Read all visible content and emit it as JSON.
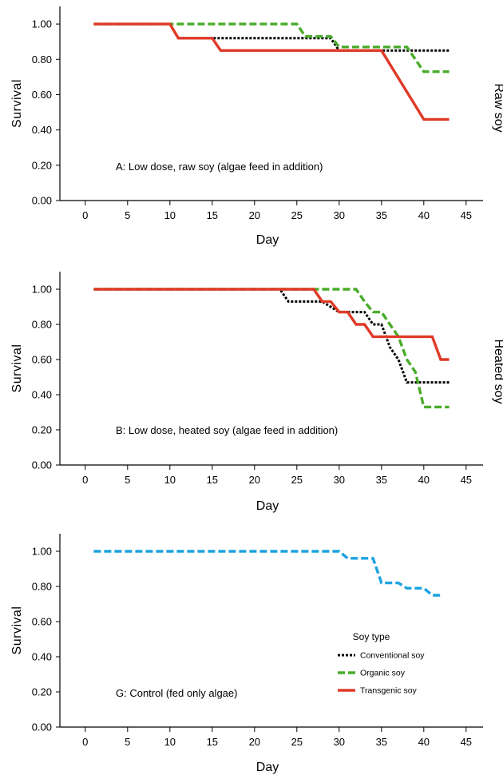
{
  "chart_data": [
    {
      "type": "line",
      "panel_id": "A",
      "annotation": "A: Low dose, raw soy (algae feed in addition)",
      "side_label": "Raw soy",
      "xlabel": "Day",
      "ylabel": "Survival",
      "xlim": [
        -3,
        47
      ],
      "ylim": [
        0,
        1.1
      ],
      "xticks": [
        0,
        5,
        10,
        15,
        20,
        25,
        30,
        35,
        40,
        45
      ],
      "yticks": [
        "0.00",
        "0.20",
        "0.40",
        "0.60",
        "0.80",
        "1.00"
      ],
      "grid": false,
      "series": [
        {
          "name": "Conventional soy",
          "color": "#000000",
          "style": "dotted",
          "points": [
            [
              1,
              1.0
            ],
            [
              10,
              1.0
            ],
            [
              11,
              0.92
            ],
            [
              29,
              0.92
            ],
            [
              30,
              0.85
            ],
            [
              43,
              0.85
            ]
          ]
        },
        {
          "name": "Organic soy",
          "color": "#4aac2a",
          "style": "dashed",
          "points": [
            [
              1,
              1.0
            ],
            [
              25,
              1.0
            ],
            [
              26,
              0.93
            ],
            [
              29,
              0.93
            ],
            [
              30,
              0.87
            ],
            [
              38,
              0.87
            ],
            [
              40,
              0.73
            ],
            [
              43,
              0.73
            ]
          ]
        },
        {
          "name": "Transgenic soy",
          "color": "#e03a28",
          "style": "solid",
          "points": [
            [
              1,
              1.0
            ],
            [
              10,
              1.0
            ],
            [
              11,
              0.92
            ],
            [
              15,
              0.92
            ],
            [
              16,
              0.85
            ],
            [
              35,
              0.85
            ],
            [
              40,
              0.46
            ],
            [
              43,
              0.46
            ]
          ]
        }
      ]
    },
    {
      "type": "line",
      "panel_id": "B",
      "annotation": "B: Low dose, heated soy (algae feed in addition)",
      "side_label": "Heated soy",
      "xlabel": "Day",
      "ylabel": "Survival",
      "xlim": [
        -3,
        47
      ],
      "ylim": [
        0,
        1.1
      ],
      "xticks": [
        0,
        5,
        10,
        15,
        20,
        25,
        30,
        35,
        40,
        45
      ],
      "yticks": [
        "0.00",
        "0.20",
        "0.40",
        "0.60",
        "0.80",
        "1.00"
      ],
      "grid": false,
      "series": [
        {
          "name": "Conventional soy",
          "color": "#000000",
          "style": "dotted",
          "points": [
            [
              1,
              1.0
            ],
            [
              23,
              1.0
            ],
            [
              24,
              0.93
            ],
            [
              27,
              0.93
            ],
            [
              28,
              0.93
            ],
            [
              30,
              0.87
            ],
            [
              33,
              0.87
            ],
            [
              34,
              0.8
            ],
            [
              35,
              0.8
            ],
            [
              36,
              0.67
            ],
            [
              37,
              0.6
            ],
            [
              38,
              0.47
            ],
            [
              43,
              0.47
            ]
          ]
        },
        {
          "name": "Organic soy",
          "color": "#4aac2a",
          "style": "dashed",
          "points": [
            [
              1,
              1.0
            ],
            [
              32,
              1.0
            ],
            [
              33,
              0.93
            ],
            [
              34,
              0.87
            ],
            [
              35,
              0.87
            ],
            [
              36,
              0.8
            ],
            [
              37,
              0.73
            ],
            [
              38,
              0.6
            ],
            [
              39,
              0.53
            ],
            [
              40,
              0.33
            ],
            [
              43,
              0.33
            ]
          ]
        },
        {
          "name": "Transgenic soy",
          "color": "#e03a28",
          "style": "solid",
          "points": [
            [
              1,
              1.0
            ],
            [
              27,
              1.0
            ],
            [
              28,
              0.93
            ],
            [
              29,
              0.93
            ],
            [
              30,
              0.87
            ],
            [
              31,
              0.87
            ],
            [
              32,
              0.8
            ],
            [
              33,
              0.8
            ],
            [
              34,
              0.73
            ],
            [
              41,
              0.73
            ],
            [
              42,
              0.6
            ],
            [
              43,
              0.6
            ]
          ]
        }
      ]
    },
    {
      "type": "line",
      "panel_id": "G",
      "annotation": "G: Control (fed only algae)",
      "xlabel": "Day",
      "ylabel": "Survival",
      "xlim": [
        -3,
        47
      ],
      "ylim": [
        0,
        1.1
      ],
      "xticks": [
        0,
        5,
        10,
        15,
        20,
        25,
        30,
        35,
        40,
        45
      ],
      "yticks": [
        "0.00",
        "0.20",
        "0.40",
        "0.60",
        "0.80",
        "1.00"
      ],
      "grid": false,
      "legend": {
        "title": "Soy type",
        "position": "right",
        "entries": [
          {
            "label": "Conventional soy",
            "color": "#000000",
            "style": "dotted"
          },
          {
            "label": "Organic soy",
            "color": "#4aac2a",
            "style": "dashed"
          },
          {
            "label": "Transgenic soy",
            "color": "#e03a28",
            "style": "solid"
          }
        ]
      },
      "series": [
        {
          "name": "Control",
          "color": "#1aa3e0",
          "style": "dashed",
          "points": [
            [
              1,
              1.0
            ],
            [
              30,
              1.0
            ],
            [
              31,
              0.96
            ],
            [
              33,
              0.96
            ],
            [
              34,
              0.96
            ],
            [
              35,
              0.82
            ],
            [
              37,
              0.82
            ],
            [
              38,
              0.79
            ],
            [
              40,
              0.79
            ],
            [
              41,
              0.75
            ],
            [
              42,
              0.75
            ]
          ]
        }
      ]
    }
  ]
}
